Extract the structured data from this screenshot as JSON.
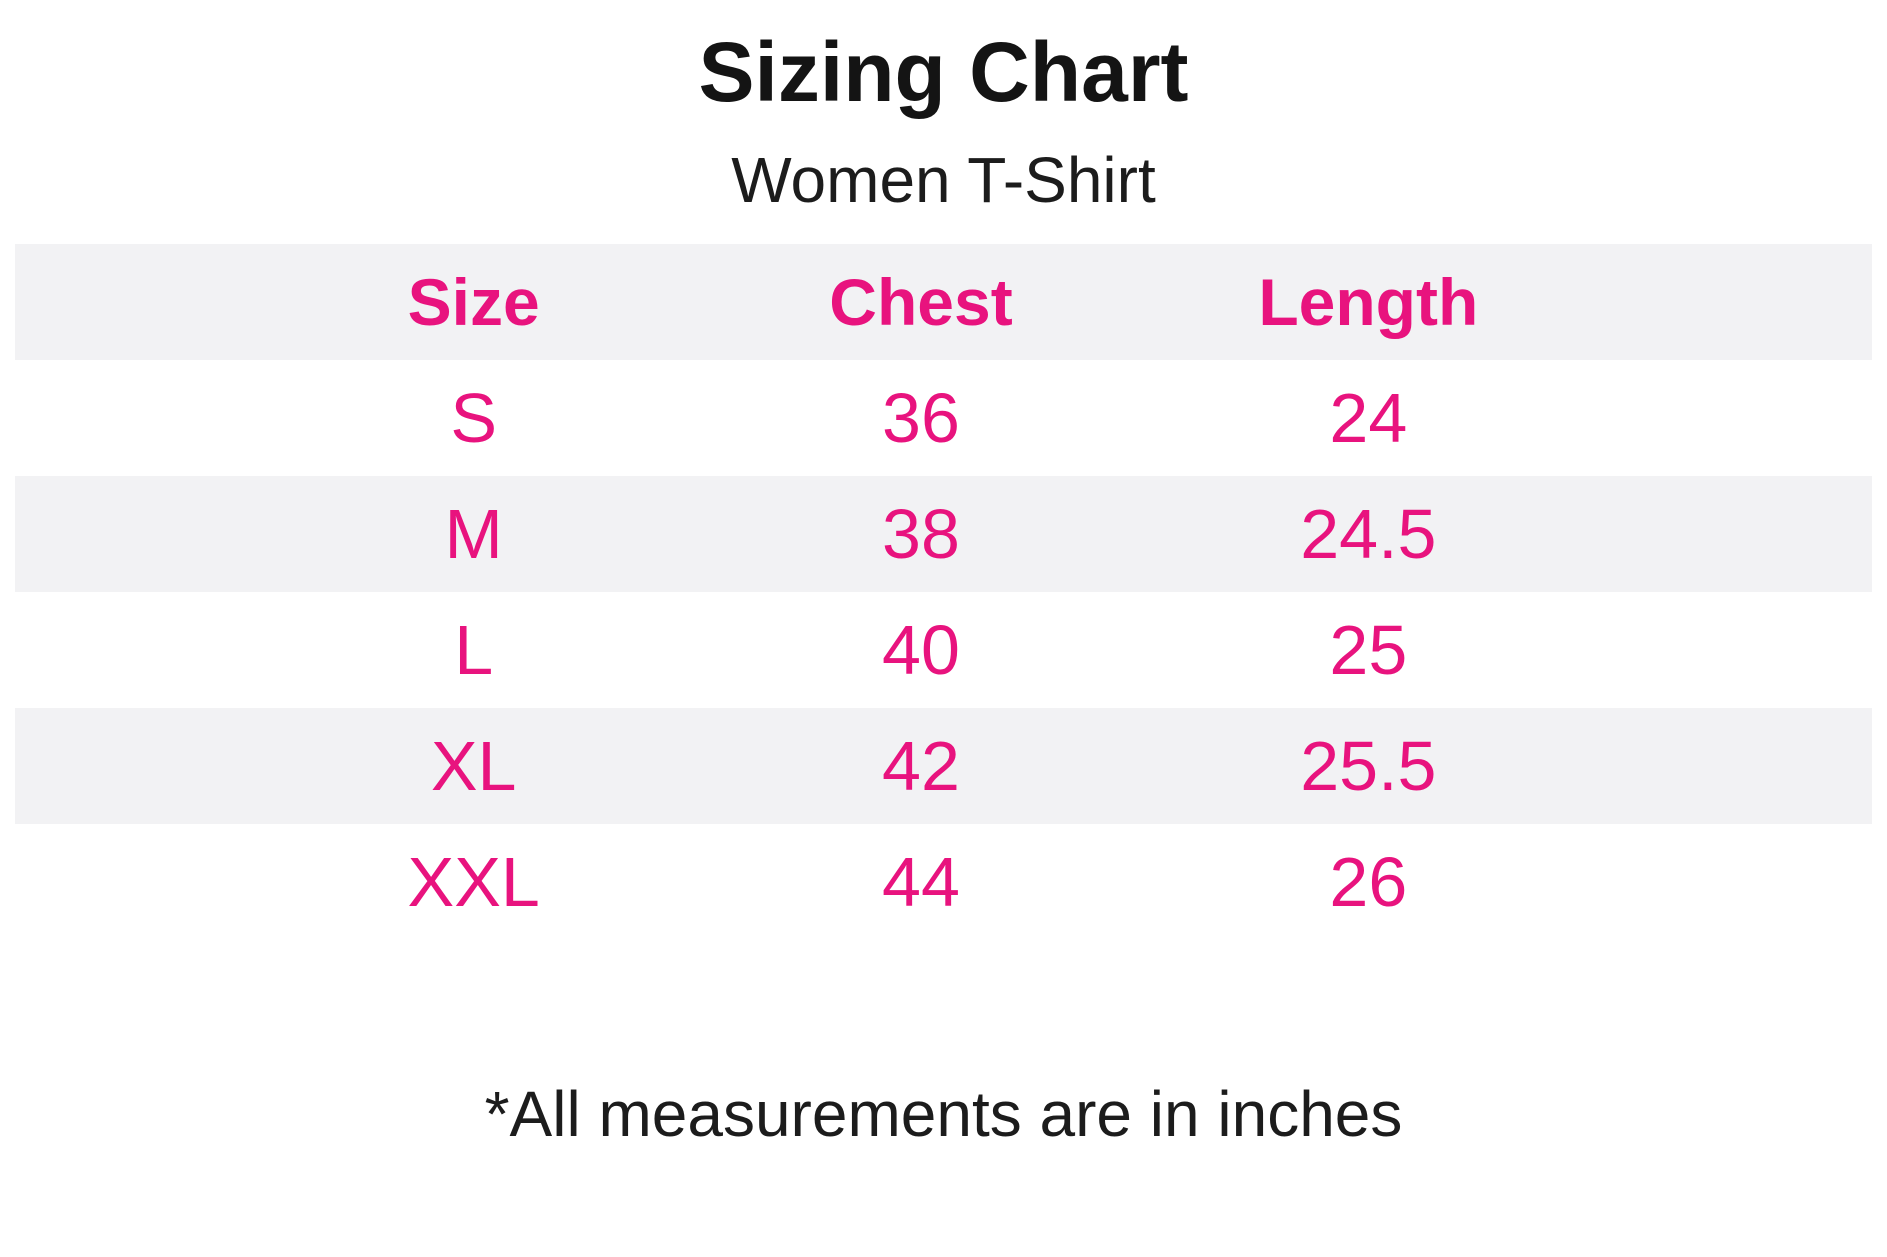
{
  "page": {
    "background_color": "#FFFFFF"
  },
  "chart_data": {
    "type": "table",
    "title": "Sizing Chart",
    "subtitle": "Women T-Shirt",
    "columns": [
      "Size",
      "Chest",
      "Length"
    ],
    "rows": [
      [
        "S",
        "36",
        "24"
      ],
      [
        "M",
        "38",
        "24.5"
      ],
      [
        "L",
        "40",
        "25"
      ],
      [
        "XL",
        "42",
        "25.5"
      ],
      [
        "XXL",
        "44",
        "26"
      ]
    ],
    "footnote": "*All measurements are in inches",
    "units": "inches",
    "layout": {
      "striped": true,
      "header_background": "#F2F2F4",
      "stripe_background": "#F2F2F4",
      "row_background": "#FFFFFF",
      "accent_color": "#E8137E",
      "title_color": "#141414",
      "text_color": "#1C1C1C",
      "legend": "none",
      "grid": "off"
    }
  }
}
